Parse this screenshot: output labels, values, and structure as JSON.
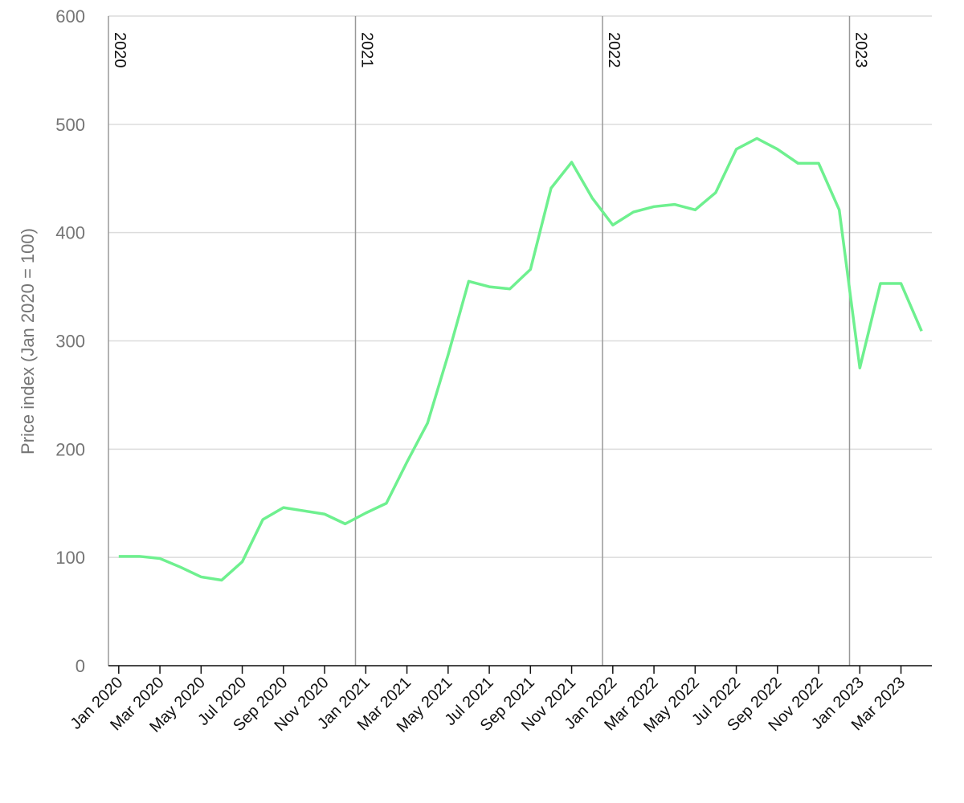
{
  "chart_data": {
    "type": "line",
    "ylabel": "Price index (Jan 2020 = 100)",
    "categories": [
      "Jan 2020",
      null,
      "Mar 2020",
      null,
      "May 2020",
      null,
      "Jul 2020",
      null,
      "Sep 2020",
      null,
      "Nov 2020",
      null,
      "Jan 2021",
      null,
      "Mar 2021",
      null,
      "May 2021",
      null,
      "Jul 2021",
      null,
      "Sep 2021",
      null,
      "Nov 2021",
      null,
      "Jan 2022",
      null,
      "Mar 2022",
      null,
      "May 2022",
      null,
      "Jul 2022",
      null,
      "Sep 2022",
      null,
      "Nov 2022",
      null,
      "Jan 2023",
      null,
      "Mar 2023",
      null
    ],
    "series": [
      {
        "color": "#6ef08f",
        "values": [
          101,
          101,
          99,
          91,
          82,
          79,
          96,
          135,
          146,
          143,
          140,
          131,
          141,
          150,
          188,
          224,
          287,
          355,
          350,
          348,
          366,
          441,
          465,
          432,
          407,
          419,
          424,
          426,
          421,
          437,
          477,
          487,
          477,
          464,
          464,
          421,
          275,
          353,
          353,
          309
        ]
      }
    ],
    "annotations": [
      {
        "label": "2020",
        "x": "Jan 2020"
      },
      {
        "label": "2021",
        "x": "Jan 2021"
      },
      {
        "label": "2022",
        "x": "Jan 2022"
      },
      {
        "label": "2023",
        "x": "Jan 2023"
      }
    ],
    "ylim": [
      0,
      600
    ],
    "yticks": [
      0,
      100,
      200,
      300,
      400,
      500,
      600
    ],
    "grid": true
  }
}
